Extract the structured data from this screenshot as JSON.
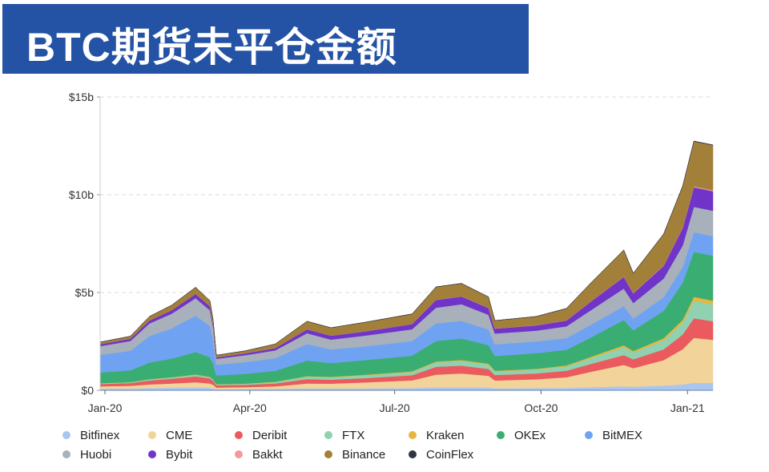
{
  "header": {
    "title": "BTC期货未平仓金额"
  },
  "chart_data": {
    "type": "area",
    "stacked": true,
    "title": "BTC期货未平仓金额",
    "xlabel": "",
    "ylabel": "",
    "ylim": [
      0,
      15
    ],
    "yticks": [
      {
        "value": 0,
        "label": "$0"
      },
      {
        "value": 5,
        "label": "$5b"
      },
      {
        "value": 10,
        "label": "$10b"
      },
      {
        "value": 15,
        "label": "$15b"
      }
    ],
    "xlim": [
      "2020-01-01",
      "2021-01-20"
    ],
    "xticks": [
      {
        "date": "2020-01-01",
        "label": "Jan-20"
      },
      {
        "date": "2020-04-01",
        "label": "Apr-20"
      },
      {
        "date": "2020-07-01",
        "label": "Jul-20"
      },
      {
        "date": "2020-10-01",
        "label": "Oct-20"
      },
      {
        "date": "2021-01-01",
        "label": "Jan-21"
      }
    ],
    "grid": "horizontal dashed",
    "legend_position": "bottom",
    "unit": "USD billions",
    "x": [
      "2020-01-01",
      "2020-01-20",
      "2020-02-01",
      "2020-02-15",
      "2020-03-01",
      "2020-03-10",
      "2020-03-12",
      "2020-03-14",
      "2020-04-01",
      "2020-04-20",
      "2020-05-10",
      "2020-05-25",
      "2020-06-15",
      "2020-07-15",
      "2020-07-30",
      "2020-08-15",
      "2020-09-01",
      "2020-09-05",
      "2020-10-01",
      "2020-10-20",
      "2020-11-05",
      "2020-11-25",
      "2020-12-01",
      "2020-12-20",
      "2021-01-01",
      "2021-01-08",
      "2021-01-20"
    ],
    "series": [
      {
        "name": "Bitfinex",
        "color": "#a9c6f0",
        "values": [
          0.08,
          0.09,
          0.11,
          0.13,
          0.15,
          0.13,
          0.1,
          0.06,
          0.06,
          0.07,
          0.1,
          0.09,
          0.1,
          0.11,
          0.15,
          0.16,
          0.14,
          0.1,
          0.11,
          0.12,
          0.16,
          0.2,
          0.18,
          0.24,
          0.3,
          0.38,
          0.38
        ]
      },
      {
        "name": "CME",
        "color": "#f2d39a",
        "values": [
          0.12,
          0.14,
          0.19,
          0.22,
          0.26,
          0.22,
          0.18,
          0.08,
          0.1,
          0.13,
          0.25,
          0.25,
          0.3,
          0.4,
          0.65,
          0.7,
          0.6,
          0.4,
          0.45,
          0.55,
          0.8,
          1.1,
          0.95,
          1.3,
          1.8,
          2.3,
          2.2
        ]
      },
      {
        "name": "Deribit",
        "color": "#ea5a5e",
        "values": [
          0.12,
          0.14,
          0.2,
          0.24,
          0.3,
          0.26,
          0.2,
          0.12,
          0.12,
          0.15,
          0.22,
          0.2,
          0.22,
          0.26,
          0.4,
          0.4,
          0.35,
          0.28,
          0.3,
          0.33,
          0.4,
          0.5,
          0.45,
          0.55,
          0.75,
          1.0,
          0.95
        ]
      },
      {
        "name": "FTX",
        "color": "#8fd1b0",
        "values": [
          0.03,
          0.04,
          0.05,
          0.06,
          0.07,
          0.06,
          0.05,
          0.04,
          0.05,
          0.07,
          0.12,
          0.12,
          0.14,
          0.16,
          0.22,
          0.24,
          0.22,
          0.18,
          0.2,
          0.22,
          0.3,
          0.4,
          0.35,
          0.45,
          0.6,
          0.9,
          0.85
        ]
      },
      {
        "name": "Kraken",
        "color": "#e8b640",
        "values": [
          0.01,
          0.01,
          0.02,
          0.02,
          0.03,
          0.02,
          0.02,
          0.01,
          0.01,
          0.02,
          0.03,
          0.03,
          0.03,
          0.04,
          0.05,
          0.05,
          0.05,
          0.04,
          0.04,
          0.05,
          0.07,
          0.1,
          0.08,
          0.12,
          0.15,
          0.2,
          0.2
        ]
      },
      {
        "name": "OKEx",
        "color": "#3aae72",
        "values": [
          0.55,
          0.6,
          0.85,
          0.95,
          1.15,
          1.0,
          0.8,
          0.45,
          0.5,
          0.55,
          0.8,
          0.7,
          0.75,
          0.8,
          1.05,
          1.1,
          0.95,
          0.75,
          0.8,
          0.8,
          1.0,
          1.3,
          1.05,
          1.4,
          1.9,
          2.3,
          2.3
        ]
      },
      {
        "name": "BitMEX",
        "color": "#6fa3f2",
        "values": [
          0.9,
          1.0,
          1.35,
          1.55,
          1.85,
          1.6,
          1.25,
          0.55,
          0.6,
          0.65,
          0.85,
          0.7,
          0.7,
          0.75,
          0.9,
          0.9,
          0.8,
          0.6,
          0.6,
          0.6,
          0.65,
          0.7,
          0.6,
          0.7,
          0.8,
          1.0,
          1.0
        ]
      },
      {
        "name": "Huobi",
        "color": "#a8b0bb",
        "values": [
          0.45,
          0.5,
          0.65,
          0.75,
          0.9,
          0.8,
          0.6,
          0.3,
          0.35,
          0.4,
          0.55,
          0.5,
          0.55,
          0.6,
          0.8,
          0.85,
          0.75,
          0.55,
          0.55,
          0.6,
          0.75,
          0.9,
          0.8,
          0.95,
          1.1,
          1.3,
          1.3
        ]
      },
      {
        "name": "Bybit",
        "color": "#7035c8",
        "values": [
          0.1,
          0.12,
          0.15,
          0.18,
          0.22,
          0.2,
          0.15,
          0.08,
          0.1,
          0.12,
          0.2,
          0.2,
          0.22,
          0.27,
          0.4,
          0.4,
          0.35,
          0.25,
          0.27,
          0.3,
          0.45,
          0.6,
          0.5,
          0.65,
          0.9,
          1.0,
          1.0
        ]
      },
      {
        "name": "Bakkt",
        "color": "#f29a9a",
        "values": [
          0.002,
          0.002,
          0.003,
          0.003,
          0.004,
          0.004,
          0.003,
          0.002,
          0.003,
          0.004,
          0.006,
          0.005,
          0.006,
          0.008,
          0.01,
          0.01,
          0.01,
          0.01,
          0.01,
          0.012,
          0.015,
          0.02,
          0.02,
          0.025,
          0.03,
          0.05,
          0.05
        ]
      },
      {
        "name": "Binance",
        "color": "#a3803a",
        "values": [
          0.1,
          0.12,
          0.2,
          0.25,
          0.33,
          0.28,
          0.22,
          0.1,
          0.12,
          0.2,
          0.4,
          0.4,
          0.45,
          0.5,
          0.65,
          0.65,
          0.55,
          0.4,
          0.44,
          0.6,
          0.95,
          1.35,
          1.0,
          1.6,
          2.1,
          2.3,
          2.3
        ]
      },
      {
        "name": "CoinFlex",
        "color": "#2e3440",
        "values": [
          0.005,
          0.005,
          0.005,
          0.005,
          0.005,
          0.005,
          0.005,
          0.005,
          0.005,
          0.005,
          0.005,
          0.005,
          0.01,
          0.01,
          0.01,
          0.01,
          0.01,
          0.01,
          0.01,
          0.01,
          0.01,
          0.01,
          0.01,
          0.01,
          0.02,
          0.02,
          0.02
        ]
      }
    ]
  }
}
